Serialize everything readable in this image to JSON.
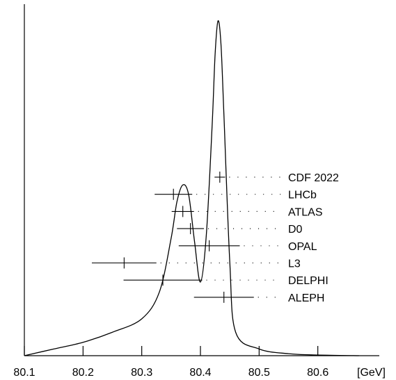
{
  "chart_data": {
    "type": "line",
    "title": "",
    "xlabel": "",
    "ylabel": "",
    "x_unit": "[GeV]",
    "xlim": [
      80.1,
      80.67
    ],
    "x_ticks": [
      "80.1",
      "80.2",
      "80.3",
      "80.4",
      "80.5",
      "80.6"
    ],
    "grid": false,
    "series": [
      {
        "values_description_x": [
          80.1,
          80.15,
          80.2,
          80.25,
          80.3,
          80.33,
          80.35,
          80.36,
          80.37,
          80.38,
          80.39,
          80.4,
          80.41,
          80.42,
          80.425,
          80.43,
          80.435,
          80.44,
          80.45,
          80.46,
          80.5,
          80.55,
          80.6,
          80.67
        ],
        "x": [
          80.1,
          80.15,
          80.2,
          80.25,
          80.3,
          80.33,
          80.35,
          80.36,
          80.37,
          80.38,
          80.39,
          80.4,
          80.41,
          80.42,
          80.425,
          80.43,
          80.435,
          80.44,
          80.45,
          80.46,
          80.5,
          80.55,
          80.6,
          80.67
        ],
        "y": [
          0.0,
          0.02,
          0.04,
          0.07,
          0.11,
          0.19,
          0.35,
          0.46,
          0.51,
          0.48,
          0.34,
          0.22,
          0.36,
          0.69,
          0.9,
          1.0,
          0.93,
          0.72,
          0.28,
          0.07,
          0.02,
          0.006,
          0.002,
          0.0
        ]
      }
    ],
    "measurements": [
      {
        "label": "CDF 2022",
        "value": 80.433,
        "low": 80.424,
        "high": 80.442
      },
      {
        "label": "LHCb",
        "value": 80.354,
        "low": 80.322,
        "high": 80.386
      },
      {
        "label": "ATLAS",
        "value": 80.37,
        "low": 80.351,
        "high": 80.389
      },
      {
        "label": "D0",
        "value": 80.383,
        "low": 80.36,
        "high": 80.406
      },
      {
        "label": "OPAL",
        "value": 80.415,
        "low": 80.363,
        "high": 80.467
      },
      {
        "label": "L3",
        "value": 80.27,
        "low": 80.215,
        "high": 80.325
      },
      {
        "label": "DELPHI",
        "value": 80.336,
        "low": 80.269,
        "high": 80.403
      },
      {
        "label": "ALEPH",
        "value": 80.44,
        "low": 80.389,
        "high": 80.491
      }
    ]
  }
}
